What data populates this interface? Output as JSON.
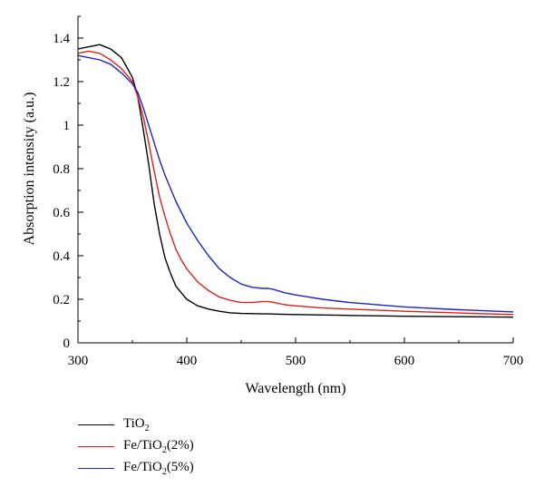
{
  "chart_data": {
    "type": "line",
    "xlabel": "Wavelength (nm)",
    "ylabel": "Absorption intensity (a.u.)",
    "xlim": [
      300,
      700
    ],
    "ylim": [
      0,
      1.5
    ],
    "xticks": [
      300,
      400,
      500,
      600,
      700
    ],
    "yticks": [
      0,
      0.2,
      0.4,
      0.6,
      0.8,
      1,
      1.2,
      1.4
    ],
    "grid": false,
    "legend_position": "bottom-left, below plot",
    "x": [
      300,
      310,
      320,
      330,
      340,
      350,
      355,
      360,
      365,
      370,
      375,
      380,
      385,
      390,
      395,
      400,
      410,
      420,
      430,
      440,
      450,
      460,
      470,
      475,
      480,
      490,
      500,
      525,
      550,
      600,
      650,
      700
    ],
    "series": [
      {
        "name": "TiO2",
        "label_main": "TiO",
        "label_sub": "2",
        "label_tail": "",
        "color": "#000000",
        "values": [
          1.35,
          1.36,
          1.37,
          1.35,
          1.31,
          1.22,
          1.13,
          0.98,
          0.82,
          0.64,
          0.5,
          0.39,
          0.32,
          0.26,
          0.23,
          0.2,
          0.17,
          0.155,
          0.145,
          0.138,
          0.135,
          0.134,
          0.133,
          0.133,
          0.132,
          0.131,
          0.13,
          0.128,
          0.126,
          0.122,
          0.12,
          0.118
        ]
      },
      {
        "name": "Fe/TiO2(2%)",
        "label_main": "Fe/TiO",
        "label_sub": "2",
        "label_tail": "(2%)",
        "color": "#e0201b",
        "values": [
          1.33,
          1.34,
          1.33,
          1.3,
          1.26,
          1.2,
          1.13,
          1.04,
          0.92,
          0.79,
          0.67,
          0.58,
          0.5,
          0.43,
          0.38,
          0.34,
          0.28,
          0.24,
          0.21,
          0.195,
          0.185,
          0.185,
          0.19,
          0.19,
          0.185,
          0.175,
          0.17,
          0.16,
          0.155,
          0.145,
          0.137,
          0.13
        ]
      },
      {
        "name": "Fe/TiO2(5%)",
        "label_main": "Fe/TiO",
        "label_sub": "2",
        "label_tail": "(5%)",
        "color": "#1f24c4",
        "values": [
          1.32,
          1.31,
          1.3,
          1.28,
          1.24,
          1.19,
          1.15,
          1.08,
          1.0,
          0.92,
          0.84,
          0.77,
          0.71,
          0.65,
          0.6,
          0.55,
          0.47,
          0.4,
          0.34,
          0.3,
          0.27,
          0.255,
          0.25,
          0.25,
          0.245,
          0.23,
          0.22,
          0.2,
          0.185,
          0.165,
          0.152,
          0.142
        ]
      }
    ]
  }
}
